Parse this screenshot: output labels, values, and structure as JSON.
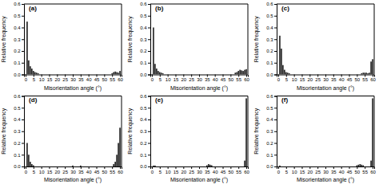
{
  "chart_data": [
    {
      "type": "bar",
      "title": "(a)",
      "xlabel": "Misorientation angle (°)",
      "ylabel": "Relative frequency",
      "color": "#1a1a1a",
      "x": [
        1,
        2,
        3,
        4,
        5,
        6,
        7,
        8,
        55,
        56,
        57,
        58,
        59,
        60
      ],
      "values": [
        0.45,
        0.12,
        0.07,
        0.05,
        0.03,
        0.02,
        0.015,
        0.01,
        0.01,
        0.02,
        0.025,
        0.02,
        0.015,
        0.03
      ],
      "xlim": [
        -1,
        61
      ],
      "xticks": [
        0,
        5,
        10,
        15,
        20,
        25,
        30,
        35,
        40,
        45,
        50,
        55,
        60
      ],
      "ylim": [
        0,
        0.6
      ],
      "yticks": [
        {
          "value": 0,
          "label": "0.0"
        },
        0.1,
        0.2,
        0.3,
        0.4,
        0.5,
        0.6
      ]
    },
    {
      "type": "bar",
      "title": "(b)",
      "xlabel": "Misorientation angle (°)",
      "ylabel": "Relative frequency",
      "color": "#1a1a1a",
      "x": [
        1,
        2,
        3,
        4,
        5,
        6,
        7,
        53,
        54,
        55,
        56,
        57,
        58,
        59,
        60
      ],
      "values": [
        0.4,
        0.09,
        0.05,
        0.03,
        0.02,
        0.015,
        0.01,
        0.015,
        0.02,
        0.03,
        0.04,
        0.035,
        0.03,
        0.04,
        0.045
      ],
      "xlim": [
        -1,
        61
      ],
      "xticks": [
        0,
        5,
        10,
        15,
        20,
        25,
        30,
        35,
        40,
        45,
        50,
        55,
        60
      ],
      "ylim": [
        0,
        0.6
      ],
      "yticks": [
        {
          "value": 0,
          "label": "0.0"
        },
        0.1,
        0.2,
        0.3,
        0.4,
        0.5,
        0.6
      ]
    },
    {
      "type": "bar",
      "title": "(c)",
      "xlabel": "Misorientation angle (°)",
      "ylabel": "Relative frequency",
      "color": "#1a1a1a",
      "x": [
        1,
        2,
        3,
        4,
        5,
        6,
        7,
        53,
        54,
        55,
        56,
        57,
        58,
        59,
        60
      ],
      "values": [
        0.33,
        0.22,
        0.08,
        0.04,
        0.02,
        0.015,
        0.01,
        0.01,
        0.015,
        0.015,
        0.015,
        0.01,
        0.015,
        0.11,
        0.13
      ],
      "xlim": [
        -1,
        61
      ],
      "xticks": [
        0,
        5,
        10,
        15,
        20,
        25,
        30,
        35,
        40,
        45,
        50,
        55,
        60
      ],
      "ylim": [
        0,
        0.6
      ],
      "yticks": [
        {
          "value": 0,
          "label": "0.0"
        },
        0.1,
        0.2,
        0.3,
        0.4,
        0.5,
        0.6
      ]
    },
    {
      "type": "bar",
      "title": "(d)",
      "xlabel": "Misorientation angle (°)",
      "ylabel": "Relative frequency",
      "color": "#1a1a1a",
      "x": [
        1,
        2,
        3,
        4,
        5,
        30,
        35,
        56,
        57,
        58,
        59,
        60
      ],
      "values": [
        0.2,
        0.1,
        0.04,
        0.02,
        0.01,
        0.008,
        0.008,
        0.02,
        0.04,
        0.1,
        0.2,
        0.33
      ],
      "xlim": [
        -1,
        61
      ],
      "xticks": [
        0,
        5,
        10,
        15,
        20,
        25,
        30,
        35,
        40,
        45,
        50,
        55,
        60
      ],
      "ylim": [
        0,
        0.6
      ],
      "yticks": [
        {
          "value": 0,
          "label": "0.0"
        },
        0.1,
        0.2,
        0.3,
        0.4,
        0.5,
        0.6
      ]
    },
    {
      "type": "bar",
      "title": "(e)",
      "xlabel": "Misorientation angle (°)",
      "ylabel": "Relative frequency",
      "color": "#1a1a1a",
      "x": [
        1,
        2,
        35,
        36,
        37,
        38,
        59,
        60
      ],
      "values": [
        0.008,
        0.008,
        0.01,
        0.02,
        0.015,
        0.01,
        0.05,
        0.58
      ],
      "xlim": [
        -1,
        61
      ],
      "xticks": [
        0,
        5,
        10,
        15,
        20,
        25,
        30,
        35,
        40,
        45,
        50,
        55,
        60
      ],
      "ylim": [
        0,
        0.6
      ],
      "yticks": [
        {
          "value": 0,
          "label": "0.0"
        },
        0.1,
        0.2,
        0.3,
        0.4,
        0.5,
        0.6
      ]
    },
    {
      "type": "bar",
      "title": "(f)",
      "xlabel": "Misorientation angle (°)",
      "ylabel": "Relative frequency",
      "color": "#1a1a1a",
      "x": [
        1,
        50,
        51,
        52,
        53,
        54,
        59,
        60
      ],
      "values": [
        0.008,
        0.01,
        0.015,
        0.02,
        0.015,
        0.01,
        0.05,
        0.58
      ],
      "xlim": [
        -1,
        61
      ],
      "xticks": [
        0,
        5,
        10,
        15,
        20,
        25,
        30,
        35,
        40,
        45,
        50,
        55,
        60
      ],
      "ylim": [
        0,
        0.6
      ],
      "yticks": [
        {
          "value": 0,
          "label": "0.0"
        },
        0.1,
        0.2,
        0.3,
        0.4,
        0.5,
        0.6
      ]
    }
  ]
}
